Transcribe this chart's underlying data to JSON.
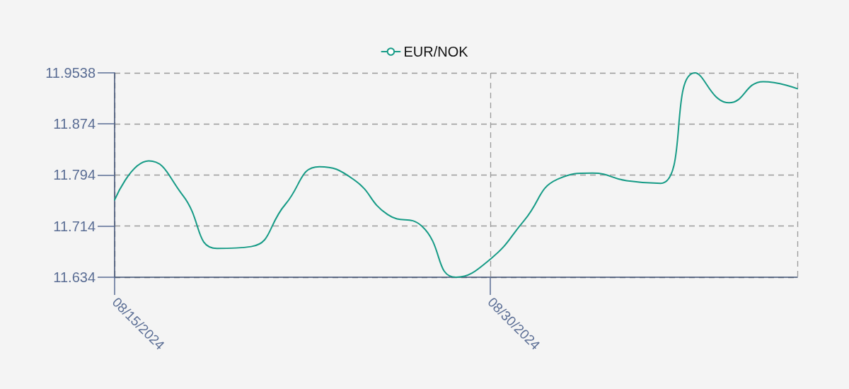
{
  "chart_data": {
    "type": "line",
    "categories": [
      "08/15/2024",
      null,
      null,
      null,
      null,
      null,
      null,
      null,
      null,
      null,
      null,
      "08/30/2024",
      null,
      null,
      null,
      null,
      null,
      null,
      null,
      null,
      null
    ],
    "series": [
      {
        "name": "EUR/NOK",
        "color": "#169b86",
        "values": [
          11.755,
          11.816,
          11.762,
          11.679,
          11.682,
          11.748,
          11.807,
          11.787,
          11.732,
          11.714,
          11.634,
          11.662,
          11.723,
          11.788,
          11.797,
          11.785,
          11.781,
          11.9538,
          11.907,
          11.94,
          11.929
        ]
      }
    ],
    "ylim": [
      11.634,
      11.9538
    ],
    "yticks": [
      11.634,
      11.714,
      11.794,
      11.874,
      11.9538
    ],
    "grid": true,
    "legend": "top"
  }
}
